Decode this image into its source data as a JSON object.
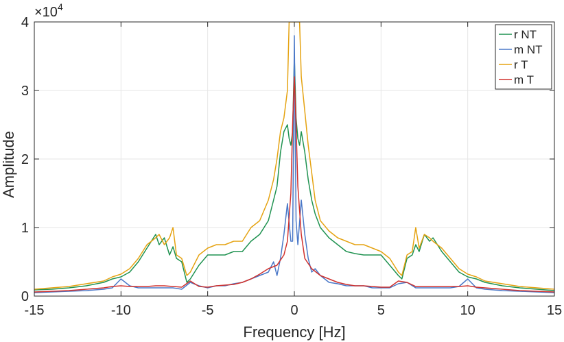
{
  "chart_data": {
    "type": "line",
    "title": "",
    "xlabel": "Frequency [Hz]",
    "ylabel": "Amplitude",
    "y_exponent_label": "×10",
    "y_exponent_power": "4",
    "y_scale_factor": 10000,
    "xlim": [
      -15,
      15
    ],
    "ylim": [
      0,
      4
    ],
    "xticks": [
      -15,
      -10,
      -5,
      0,
      5,
      10,
      15
    ],
    "yticks": [
      0,
      1,
      2,
      3,
      4
    ],
    "xtick_labels": [
      "-15",
      "-10",
      "-5",
      "0",
      "5",
      "10",
      "15"
    ],
    "ytick_labels": [
      "0",
      "1",
      "2",
      "3",
      "4"
    ],
    "grid": true,
    "legend_position": "top-right",
    "series": [
      {
        "name": "r NT",
        "color": "#1f9250",
        "x": [
          -15,
          -14,
          -13,
          -12,
          -11,
          -10.5,
          -10,
          -9.5,
          -9,
          -8.5,
          -8,
          -7.8,
          -7.5,
          -7.2,
          -7,
          -6.8,
          -6.5,
          -6.2,
          -6,
          -5.5,
          -5,
          -4.5,
          -4,
          -3.5,
          -3,
          -2.5,
          -2,
          -1.5,
          -1.2,
          -1,
          -0.8,
          -0.6,
          -0.4,
          -0.3,
          -0.2,
          -0.1,
          0,
          0.1,
          0.2,
          0.3,
          0.4,
          0.6,
          0.8,
          1,
          1.2,
          1.5,
          2,
          2.5,
          3,
          3.5,
          4,
          4.5,
          5,
          5.5,
          6,
          6.2,
          6.5,
          6.8,
          7,
          7.2,
          7.5,
          7.8,
          8,
          8.5,
          9,
          9.5,
          10,
          10.5,
          11,
          12,
          13,
          14,
          15
        ],
        "values": [
          0.09,
          0.1,
          0.12,
          0.15,
          0.2,
          0.25,
          0.28,
          0.35,
          0.5,
          0.7,
          0.9,
          0.75,
          0.85,
          0.6,
          0.72,
          0.55,
          0.5,
          0.2,
          0.25,
          0.45,
          0.6,
          0.6,
          0.6,
          0.65,
          0.65,
          0.8,
          0.9,
          1.1,
          1.4,
          1.6,
          2.1,
          2.4,
          2.5,
          2.3,
          2.2,
          2.4,
          3.5,
          2.6,
          2.3,
          2.2,
          2.4,
          2.1,
          1.7,
          1.4,
          1.2,
          1.0,
          0.85,
          0.75,
          0.65,
          0.62,
          0.6,
          0.6,
          0.6,
          0.45,
          0.3,
          0.25,
          0.55,
          0.6,
          0.75,
          0.65,
          0.9,
          0.8,
          0.85,
          0.65,
          0.5,
          0.35,
          0.28,
          0.25,
          0.2,
          0.15,
          0.12,
          0.1,
          0.08
        ]
      },
      {
        "name": "m NT",
        "color": "#4a78c8",
        "x": [
          -15,
          -14,
          -13,
          -12,
          -11,
          -10.5,
          -10,
          -9.5,
          -9,
          -8.5,
          -8,
          -7.5,
          -7,
          -6.5,
          -6,
          -5.5,
          -5,
          -4.5,
          -4,
          -3.5,
          -3,
          -2.5,
          -2,
          -1.5,
          -1.2,
          -1,
          -0.8,
          -0.6,
          -0.4,
          -0.2,
          -0.1,
          0,
          0.1,
          0.2,
          0.4,
          0.6,
          0.8,
          1,
          1.2,
          1.5,
          2,
          2.5,
          3,
          3.5,
          4,
          4.5,
          5,
          5.5,
          6,
          6.5,
          7,
          7.5,
          8,
          8.5,
          9,
          9.5,
          10,
          10.5,
          11,
          12,
          13,
          14,
          15
        ],
        "values": [
          0.05,
          0.06,
          0.07,
          0.08,
          0.1,
          0.12,
          0.25,
          0.15,
          0.12,
          0.12,
          0.12,
          0.12,
          0.12,
          0.1,
          0.2,
          0.15,
          0.12,
          0.15,
          0.15,
          0.18,
          0.2,
          0.25,
          0.3,
          0.35,
          0.5,
          0.3,
          0.55,
          0.9,
          1.35,
          0.8,
          0.8,
          3.8,
          1.1,
          0.75,
          1.4,
          0.9,
          0.55,
          0.35,
          0.4,
          0.3,
          0.2,
          0.18,
          0.15,
          0.15,
          0.15,
          0.12,
          0.12,
          0.12,
          0.18,
          0.2,
          0.12,
          0.12,
          0.12,
          0.12,
          0.12,
          0.14,
          0.25,
          0.12,
          0.1,
          0.08,
          0.07,
          0.06,
          0.05
        ]
      },
      {
        "name": "r T",
        "color": "#e5a312",
        "x": [
          -15,
          -14,
          -13,
          -12,
          -11,
          -10.5,
          -10,
          -9.5,
          -9,
          -8.5,
          -8,
          -7.8,
          -7.5,
          -7.2,
          -7,
          -6.8,
          -6.5,
          -6.2,
          -6,
          -5.5,
          -5,
          -4.5,
          -4,
          -3.5,
          -3,
          -2.5,
          -2,
          -1.5,
          -1.2,
          -1,
          -0.8,
          -0.6,
          -0.4,
          -0.3,
          -0.2,
          -0.1,
          0,
          0.1,
          0.2,
          0.3,
          0.4,
          0.6,
          0.8,
          1,
          1.2,
          1.5,
          2,
          2.5,
          3,
          3.5,
          4,
          4.5,
          5,
          5.5,
          6,
          6.2,
          6.5,
          6.8,
          7,
          7.2,
          7.5,
          7.8,
          8,
          8.5,
          9,
          9.5,
          10,
          10.5,
          11,
          12,
          13,
          14,
          15
        ],
        "values": [
          0.1,
          0.12,
          0.14,
          0.18,
          0.22,
          0.28,
          0.32,
          0.4,
          0.55,
          0.75,
          0.85,
          0.9,
          0.75,
          0.85,
          1.0,
          0.6,
          0.55,
          0.3,
          0.35,
          0.6,
          0.7,
          0.75,
          0.75,
          0.8,
          0.8,
          1.0,
          1.1,
          1.4,
          1.7,
          2.0,
          2.4,
          2.6,
          3.0,
          4.0,
          4.0,
          4.0,
          4.0,
          4.0,
          4.0,
          4.0,
          3.2,
          2.7,
          2.2,
          1.8,
          1.4,
          1.1,
          0.95,
          0.85,
          0.8,
          0.75,
          0.75,
          0.7,
          0.65,
          0.55,
          0.35,
          0.3,
          0.6,
          0.65,
          1.0,
          0.7,
          0.9,
          0.85,
          0.8,
          0.7,
          0.55,
          0.4,
          0.32,
          0.28,
          0.22,
          0.18,
          0.14,
          0.12,
          0.1
        ]
      },
      {
        "name": "m T",
        "color": "#d0312d",
        "x": [
          -15,
          -14,
          -13,
          -12,
          -11,
          -10.5,
          -10,
          -9.5,
          -9,
          -8.5,
          -8,
          -7.5,
          -7,
          -6.5,
          -6,
          -5.5,
          -5,
          -4.5,
          -4,
          -3.5,
          -3,
          -2.5,
          -2,
          -1.5,
          -1,
          -0.6,
          -0.4,
          -0.2,
          -0.1,
          0,
          0.1,
          0.2,
          0.4,
          0.6,
          1,
          1.5,
          2,
          2.5,
          3,
          3.5,
          4,
          4.5,
          5,
          5.5,
          6,
          6.5,
          7,
          7.5,
          8,
          8.5,
          9,
          9.5,
          10,
          10.5,
          11,
          12,
          13,
          14,
          15
        ],
        "values": [
          0.06,
          0.07,
          0.08,
          0.1,
          0.12,
          0.14,
          0.15,
          0.14,
          0.14,
          0.14,
          0.15,
          0.15,
          0.14,
          0.13,
          0.22,
          0.14,
          0.13,
          0.15,
          0.16,
          0.17,
          0.2,
          0.25,
          0.32,
          0.4,
          0.45,
          0.6,
          0.8,
          1.5,
          2.5,
          3.2,
          2.5,
          1.6,
          0.9,
          0.55,
          0.4,
          0.3,
          0.25,
          0.2,
          0.17,
          0.15,
          0.15,
          0.14,
          0.13,
          0.13,
          0.22,
          0.2,
          0.14,
          0.14,
          0.14,
          0.14,
          0.14,
          0.14,
          0.15,
          0.13,
          0.12,
          0.1,
          0.08,
          0.07,
          0.06
        ]
      }
    ]
  }
}
